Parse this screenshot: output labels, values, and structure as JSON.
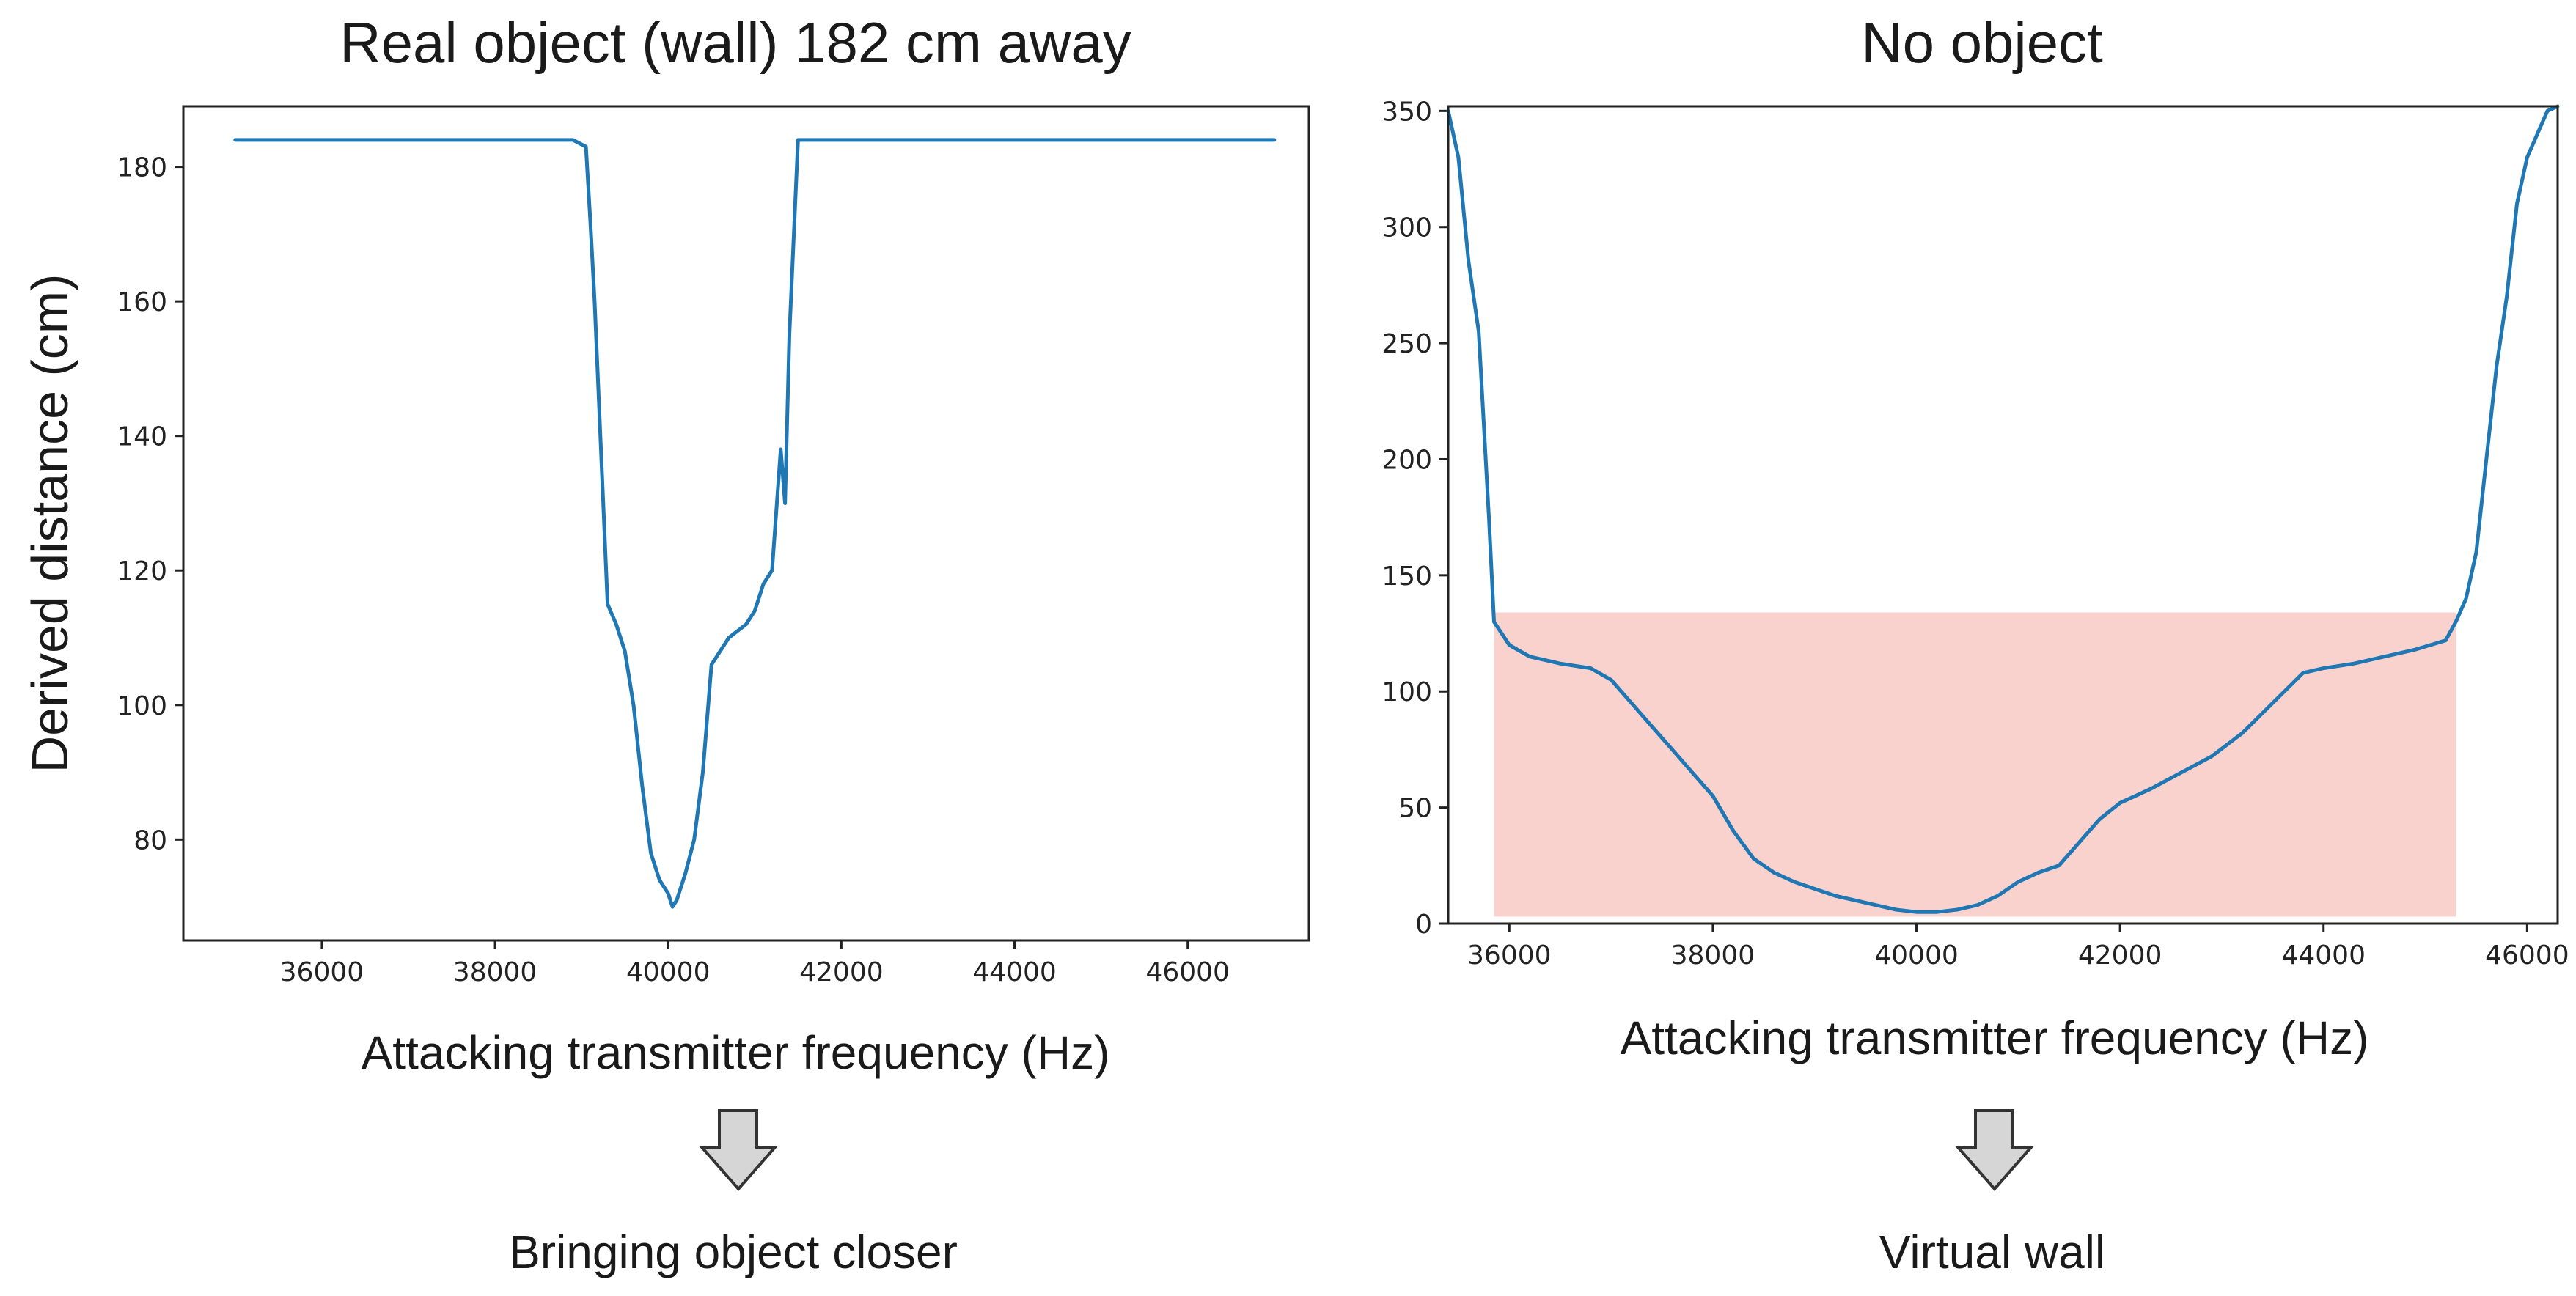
{
  "chart_data": [
    {
      "type": "line",
      "title": "Real object (wall) 182 cm away",
      "xlabel": "Attacking transmitter frequency (Hz)",
      "ylabel": "Derived distance (cm)",
      "xlim": [
        34400,
        47400
      ],
      "ylim": [
        65,
        189
      ],
      "xticks": [
        36000,
        38000,
        40000,
        42000,
        44000,
        46000
      ],
      "yticks": [
        80,
        100,
        120,
        140,
        160,
        180
      ],
      "grid": false,
      "series": [
        {
          "color": "#1f77b4",
          "x": [
            35000,
            35400,
            36000,
            36500,
            37000,
            37500,
            38000,
            38500,
            38900,
            39050,
            39100,
            39150,
            39200,
            39250,
            39300,
            39400,
            39500,
            39600,
            39700,
            39800,
            39900,
            40000,
            40050,
            40100,
            40200,
            40300,
            40400,
            40500,
            40600,
            40700,
            40800,
            40900,
            41000,
            41100,
            41200,
            41300,
            41350,
            41400,
            41500,
            41800,
            42000,
            42500,
            43000,
            43500,
            44000,
            44500,
            45000,
            45500,
            46000,
            46500,
            47000
          ],
          "y": [
            184,
            184,
            184,
            184,
            184,
            184,
            184,
            184,
            184,
            183,
            172,
            160,
            145,
            130,
            115,
            112,
            108,
            100,
            88,
            78,
            74,
            72,
            70,
            71,
            75,
            80,
            90,
            106,
            108,
            110,
            111,
            112,
            114,
            118,
            120,
            138,
            130,
            155,
            184,
            184,
            184,
            184,
            184,
            184,
            184,
            184,
            184,
            184,
            184,
            184,
            184
          ]
        }
      ],
      "caption": "Bringing object closer"
    },
    {
      "type": "line",
      "title": "No object",
      "xlabel": "Attacking transmitter frequency (Hz)",
      "ylabel": "",
      "xlim": [
        35400,
        46300
      ],
      "ylim": [
        0,
        352
      ],
      "xticks": [
        36000,
        38000,
        40000,
        42000,
        44000,
        46000
      ],
      "yticks": [
        0,
        50,
        100,
        150,
        200,
        250,
        300,
        350
      ],
      "grid": false,
      "highlight": {
        "x": [
          35850,
          45300
        ],
        "y": [
          3,
          134
        ],
        "color": "#f8c9c4"
      },
      "series": [
        {
          "color": "#1f77b4",
          "x": [
            35400,
            35500,
            35600,
            35700,
            35800,
            35850,
            36000,
            36200,
            36500,
            36800,
            37000,
            37200,
            37400,
            37600,
            37800,
            38000,
            38200,
            38400,
            38600,
            38800,
            39000,
            39200,
            39400,
            39600,
            39800,
            40000,
            40200,
            40400,
            40600,
            40800,
            41000,
            41200,
            41400,
            41600,
            41800,
            42000,
            42300,
            42600,
            42900,
            43200,
            43500,
            43800,
            44000,
            44300,
            44600,
            44900,
            45200,
            45300,
            45400,
            45500,
            45600,
            45700,
            45800,
            45900,
            46000,
            46100,
            46200,
            46300
          ],
          "y": [
            350,
            330,
            285,
            255,
            175,
            130,
            120,
            115,
            112,
            110,
            105,
            95,
            85,
            75,
            65,
            55,
            40,
            28,
            22,
            18,
            15,
            12,
            10,
            8,
            6,
            5,
            5,
            6,
            8,
            12,
            18,
            22,
            25,
            35,
            45,
            52,
            58,
            65,
            72,
            82,
            95,
            108,
            110,
            112,
            115,
            118,
            122,
            130,
            140,
            160,
            200,
            240,
            270,
            310,
            330,
            340,
            350,
            352
          ]
        }
      ],
      "caption": "Virtual wall"
    }
  ]
}
